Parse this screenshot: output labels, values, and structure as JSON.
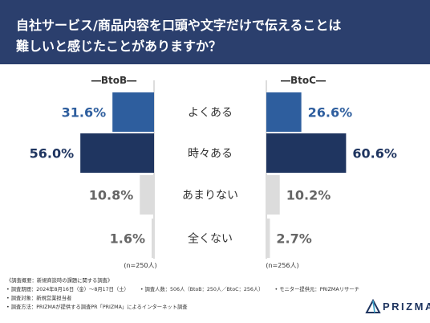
{
  "header": {
    "title_line1": "自社サービス/商品内容を口頭や文字だけで伝えることは",
    "title_line2": "難しいと感じたことがありますか？"
  },
  "chart_data": {
    "type": "bar",
    "orientation": "horizontal-butterfly",
    "title": "自社サービス/商品内容を口頭や文字だけで伝えることは難しいと感じたことがありますか？",
    "categories": [
      "よくある",
      "時々ある",
      "あまりない",
      "全くない"
    ],
    "series": [
      {
        "name": "BtoB",
        "values": [
          31.6,
          56.0,
          10.8,
          1.6
        ],
        "labels": [
          "31.6%",
          "56.0%",
          "10.8%",
          "1.6%"
        ],
        "n": "(n=250人)",
        "heading": "―BtoB―"
      },
      {
        "name": "BtoC",
        "values": [
          26.6,
          60.6,
          10.2,
          2.7
        ],
        "labels": [
          "26.6%",
          "60.6%",
          "10.2%",
          "2.7%"
        ],
        "n": "(n=256人)",
        "heading": "―BtoC―"
      }
    ],
    "colors": [
      "#2e5e9e",
      "#1f3560",
      "#dcdcdc",
      "#dcdcdc"
    ],
    "label_colors": [
      "#2e5e9e",
      "#1f3560",
      "#666666",
      "#666666"
    ],
    "xlim": [
      0,
      65
    ],
    "grid": false,
    "legend": "none"
  },
  "notes": {
    "overview": "《調査概要：新規商談時の課題に関する調査》",
    "period": "• 調査期間：2024年8月16日（金）〜8月17日（土）",
    "count": "• 調査人数：506人（BtoB：250人／BtoC：256人）",
    "provider": "• モニター提供元：PRIZMAリサーチ",
    "target": "• 調査対象：新規営業担当者",
    "method": "• 調査方法：PRIZMAが提供する調査PR「PRIZMA」によるインターネット調査"
  },
  "logo": {
    "text": "PRIZMA",
    "icon": "prizma-logo-icon"
  },
  "colors": {
    "header_bg": "#2b3f6d"
  }
}
